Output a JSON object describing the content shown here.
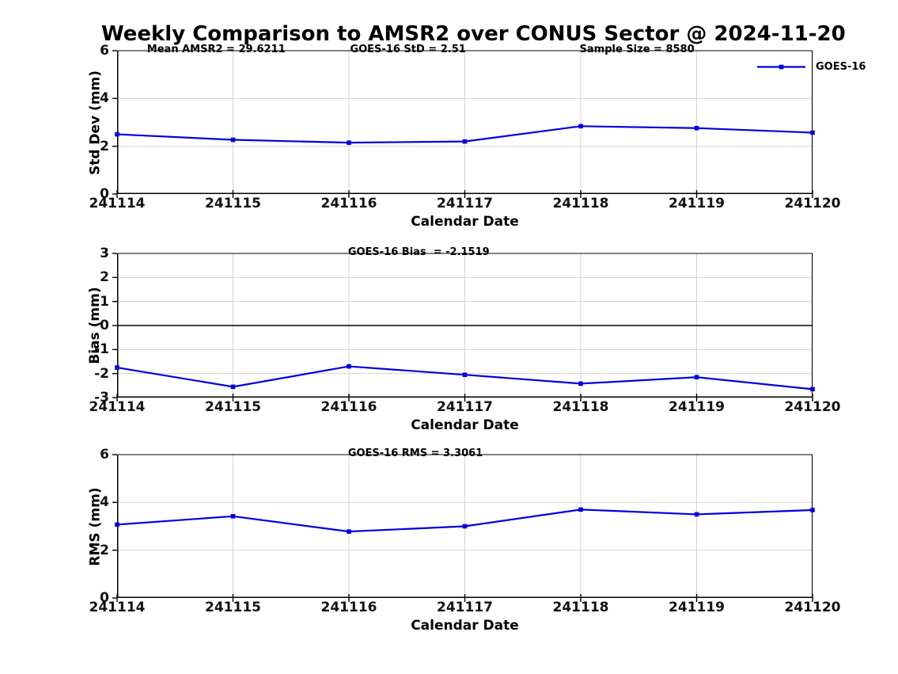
{
  "title": "Weekly Comparison to AMSR2 over CONUS Sector @ 2024-11-20",
  "legend": {
    "label": "GOES-16"
  },
  "colors": {
    "line": "#0000dd",
    "grid": "#d3d3d3",
    "axis": "#000000",
    "zero_line": "#000000",
    "text": "#000000",
    "background": "#ffffff"
  },
  "chart_data": [
    {
      "type": "line",
      "name": "std-dev",
      "categories": [
        "241114",
        "241115",
        "241116",
        "241117",
        "241118",
        "241119",
        "241120"
      ],
      "series": [
        {
          "name": "GOES-16",
          "values": [
            2.5,
            2.27,
            2.15,
            2.2,
            2.84,
            2.76,
            2.57
          ]
        }
      ],
      "ylabel": "Std Dev (mm)",
      "xlabel": "Calendar Date",
      "ylim": [
        0,
        6
      ],
      "yticks": [
        0,
        2,
        4,
        6
      ],
      "grid": true,
      "zero_line": false,
      "legend_position": "top-right",
      "annotations": [
        "Mean AMSR2 = 29.6211",
        "GOES-16 StD = 2.51",
        "Sample Size = 8580"
      ]
    },
    {
      "type": "line",
      "name": "bias",
      "categories": [
        "241114",
        "241115",
        "241116",
        "241117",
        "241118",
        "241119",
        "241120"
      ],
      "series": [
        {
          "name": "GOES-16",
          "values": [
            -1.75,
            -2.55,
            -1.7,
            -2.05,
            -2.42,
            -2.15,
            -2.65
          ]
        }
      ],
      "ylabel": "Bias (mm)",
      "xlabel": "Calendar Date",
      "ylim": [
        -3,
        3
      ],
      "yticks": [
        3,
        2,
        1,
        0,
        -1,
        -2,
        -3
      ],
      "grid": true,
      "zero_line": true,
      "legend_position": "none",
      "annotations": [
        "GOES-16 Bias  = -2.1519"
      ]
    },
    {
      "type": "line",
      "name": "rms",
      "categories": [
        "241114",
        "241115",
        "241116",
        "241117",
        "241118",
        "241119",
        "241120"
      ],
      "series": [
        {
          "name": "GOES-16",
          "values": [
            3.07,
            3.42,
            2.78,
            3.0,
            3.7,
            3.5,
            3.68
          ]
        }
      ],
      "ylabel": "RMS (mm)",
      "xlabel": "Calendar Date",
      "ylim": [
        0,
        6
      ],
      "yticks": [
        0,
        2,
        4,
        6
      ],
      "grid": true,
      "zero_line": false,
      "legend_position": "none",
      "annotations": [
        "GOES-16 RMS = 3.3061"
      ]
    }
  ]
}
